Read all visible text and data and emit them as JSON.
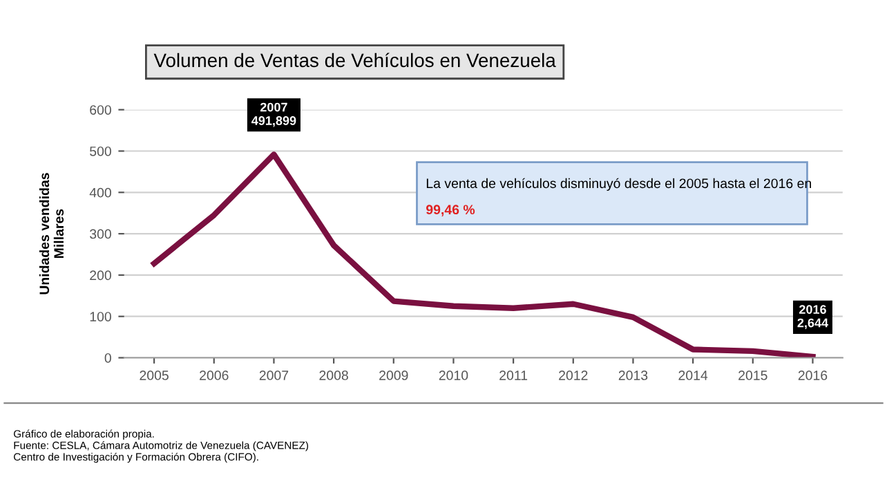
{
  "chart_data": {
    "type": "line",
    "title": "Volumen de Ventas de Vehículos en Venezuela",
    "ylabel": "Unidades vendidas\nMillares",
    "categories": [
      "2005",
      "2006",
      "2007",
      "2008",
      "2009",
      "2010",
      "2011",
      "2012",
      "2013",
      "2014",
      "2015",
      "2016"
    ],
    "series": [
      {
        "color": "#7a1040",
        "values": [
          228,
          345,
          491.899,
          272,
          137,
          125,
          120,
          130,
          98,
          20,
          16,
          2.644
        ]
      }
    ],
    "ylim": [
      0,
      600
    ],
    "yticks": [
      0,
      100,
      200,
      300,
      400,
      500,
      600
    ],
    "grid": "y",
    "marker": "none",
    "line_style": "solid",
    "annotations": [
      {
        "text": "2007\n491,899",
        "x": "2007",
        "y": 491.899
      },
      {
        "text": "2016\n2,644",
        "x": "2016",
        "y": 2.644
      },
      "La venta de vehículos disminuyó desde el 2005 hasta el 2016 en",
      "99,46 %",
      "Gráfico de elaboración propia.\nFuente: CESLA, Cámara Automotriz de Venezuela (CAVENEZ)\nCentro de Investigación y Formación Obrera (CIFO)."
    ]
  }
}
